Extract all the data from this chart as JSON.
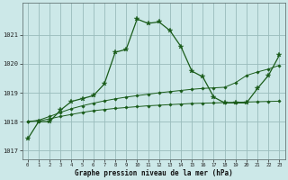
{
  "x": [
    0,
    1,
    2,
    3,
    4,
    5,
    6,
    7,
    8,
    9,
    10,
    11,
    12,
    13,
    14,
    15,
    16,
    17,
    18,
    19,
    20,
    21,
    22,
    23
  ],
  "line1": [
    1017.4,
    1018.0,
    1018.0,
    1018.4,
    1018.7,
    1018.8,
    1018.9,
    1019.3,
    1020.4,
    1020.5,
    1021.55,
    1021.4,
    1021.45,
    1021.15,
    1020.6,
    1019.75,
    1019.55,
    1018.85,
    1018.65,
    1018.65,
    1018.65,
    1019.15,
    1019.6,
    1020.3
  ],
  "line2": [
    1018.0,
    1018.02,
    1018.1,
    1018.18,
    1018.25,
    1018.32,
    1018.38,
    1018.42,
    1018.46,
    1018.49,
    1018.52,
    1018.55,
    1018.57,
    1018.59,
    1018.61,
    1018.63,
    1018.64,
    1018.65,
    1018.66,
    1018.67,
    1018.68,
    1018.69,
    1018.7,
    1018.71
  ],
  "line3": [
    1018.0,
    1018.05,
    1018.18,
    1018.32,
    1018.45,
    1018.55,
    1018.64,
    1018.72,
    1018.79,
    1018.85,
    1018.9,
    1018.95,
    1019.0,
    1019.04,
    1019.08,
    1019.12,
    1019.15,
    1019.17,
    1019.19,
    1019.35,
    1019.6,
    1019.72,
    1019.82,
    1019.95
  ],
  "bg_color": "#cce8e8",
  "grid_color": "#99bbbb",
  "line_color": "#1a5c1a",
  "ylabel_ticks": [
    1017,
    1018,
    1019,
    1020,
    1021
  ],
  "xlabel": "Graphe pression niveau de la mer (hPa)",
  "xlim": [
    -0.5,
    23.5
  ],
  "ylim": [
    1016.7,
    1022.1
  ]
}
